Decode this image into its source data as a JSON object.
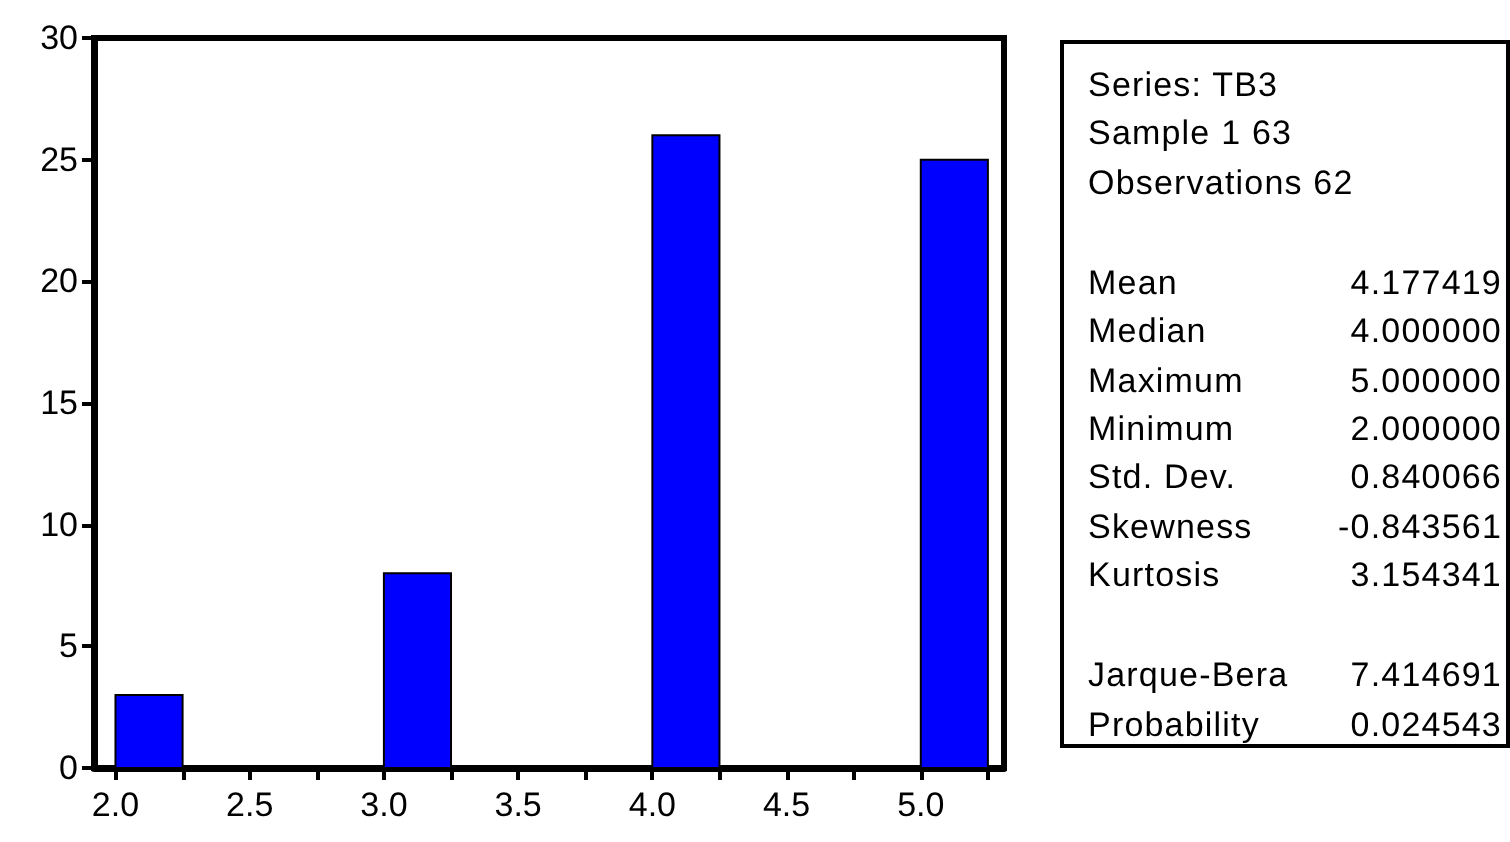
{
  "chart_data": {
    "type": "histogram",
    "bins": [
      2,
      2.25,
      3,
      3.25,
      4,
      4.25,
      5,
      5.25
    ],
    "values": [
      3,
      0,
      8,
      0,
      26,
      0,
      25
    ],
    "color": "#0000ff",
    "xlim": [
      1.92,
      5.31
    ],
    "xticks": [
      {
        "value": 2,
        "label": "2.0"
      },
      {
        "value": 2.25,
        "label": null
      },
      2.5,
      {
        "value": 2.75,
        "label": null
      },
      {
        "value": 3,
        "label": "3.0"
      },
      {
        "value": 3.25,
        "label": null
      },
      3.5,
      {
        "value": 3.75,
        "label": null
      },
      {
        "value": 4,
        "label": "4.0"
      },
      {
        "value": 4.25,
        "label": null
      },
      4.5,
      {
        "value": 4.75,
        "label": null
      },
      {
        "value": 5,
        "label": "5.0"
      },
      {
        "value": 5.25,
        "label": null
      }
    ],
    "ylim": [
      0,
      30
    ],
    "yticks": [
      0,
      5,
      10,
      15,
      20,
      25,
      30
    ],
    "grid": false,
    "annotations": [
      "Series: TB3",
      "Sample 1 63",
      "Observations 62",
      "Mean\t4.177419",
      "Median\t4.000000",
      "Maximum\t5.000000",
      "Minimum\t2.000000",
      "Std. Dev.\t0.840066",
      "Skewness\t-0.843561",
      "Kurtosis\t3.154341",
      "Jarque-Bera\t7.414691",
      "Probability\t0.024543"
    ]
  }
}
